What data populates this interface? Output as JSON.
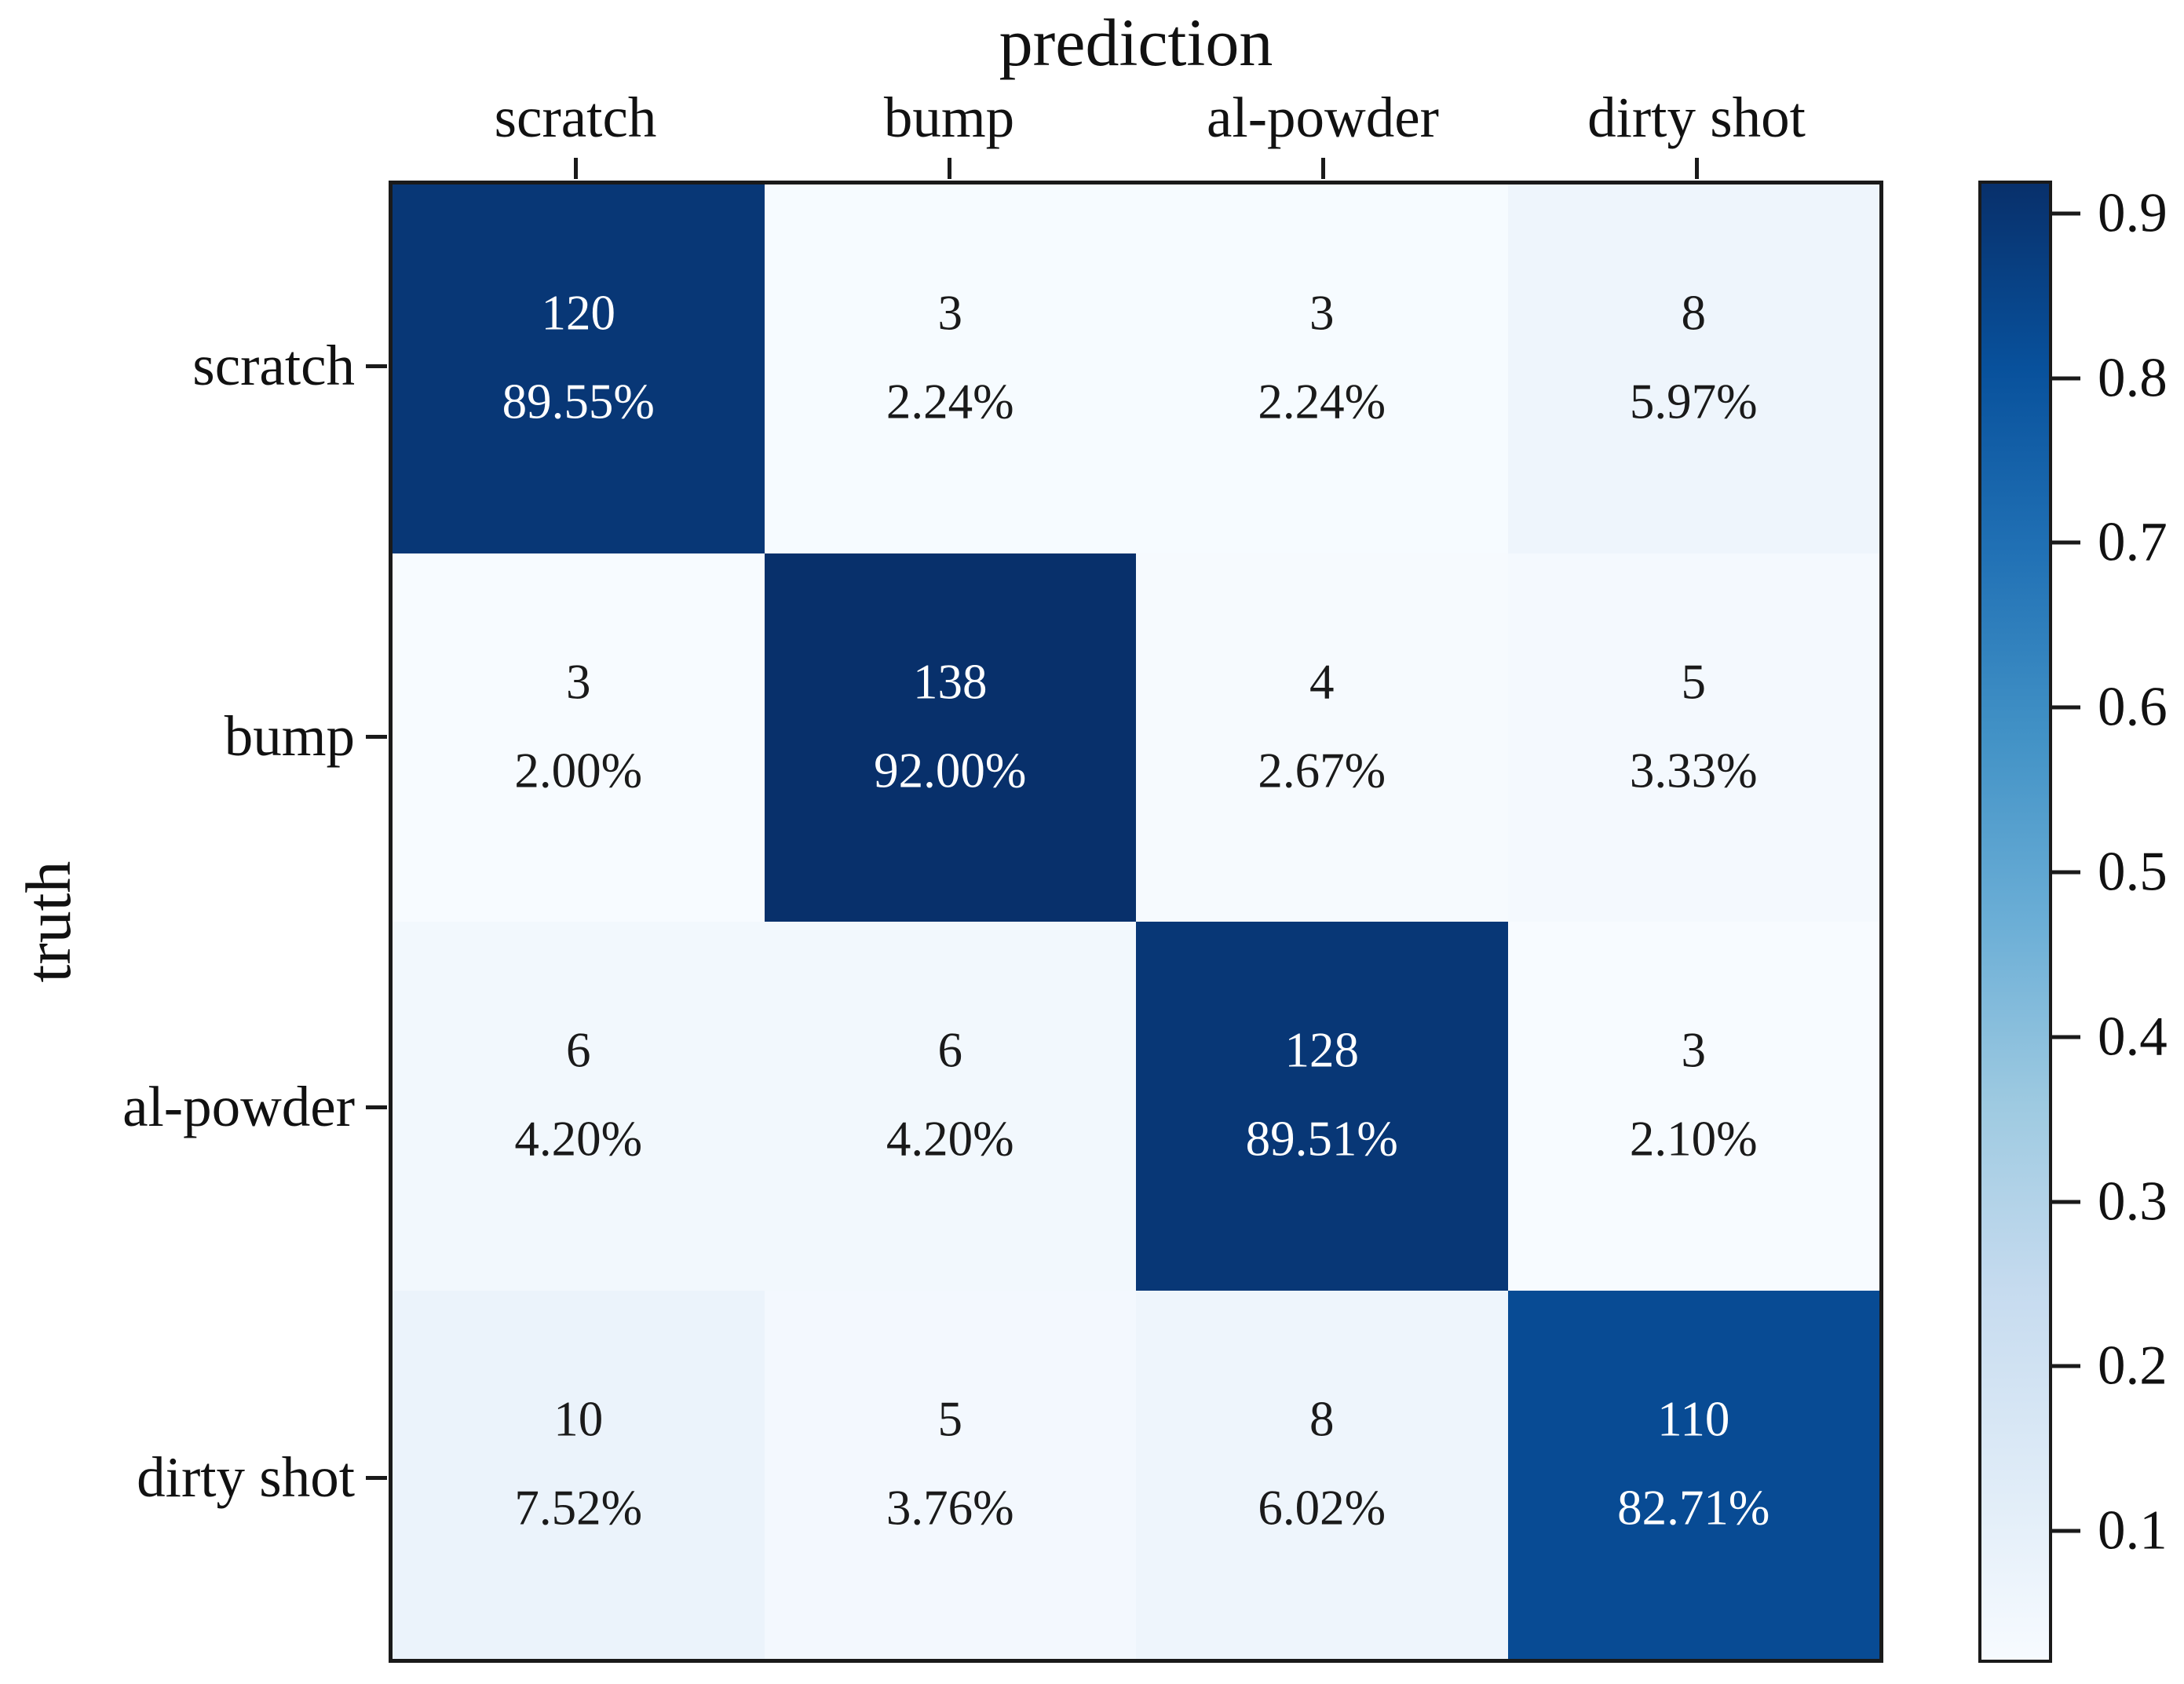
{
  "figure": {
    "title": "prediction",
    "ylabel": "truth",
    "background_color": "#ffffff",
    "axis_color": "#1a1a1a"
  },
  "chart_data": {
    "type": "heatmap",
    "title": "prediction",
    "xlabel": "prediction",
    "ylabel": "truth",
    "colormap": "Blues",
    "categories": [
      "scratch",
      "bump",
      "al-powder",
      "dirty shot"
    ],
    "rows": [
      {
        "label": "scratch",
        "cells": [
          {
            "count": "120",
            "percent": "89.55%",
            "value": 0.8955,
            "bg": "#083776",
            "fg": "#ffffff"
          },
          {
            "count": "3",
            "percent": "2.24%",
            "value": 0.0224,
            "bg": "#f6fbff",
            "fg": "#1a1a1a"
          },
          {
            "count": "3",
            "percent": "2.24%",
            "value": 0.0224,
            "bg": "#f6fbff",
            "fg": "#1a1a1a"
          },
          {
            "count": "8",
            "percent": "5.97%",
            "value": 0.0597,
            "bg": "#eef5fc",
            "fg": "#1a1a1a"
          }
        ]
      },
      {
        "label": "bump",
        "cells": [
          {
            "count": "3",
            "percent": "2.00%",
            "value": 0.02,
            "bg": "#f7fbff",
            "fg": "#1a1a1a"
          },
          {
            "count": "138",
            "percent": "92.00%",
            "value": 0.92,
            "bg": "#08306b",
            "fg": "#ffffff"
          },
          {
            "count": "4",
            "percent": "2.67%",
            "value": 0.0267,
            "bg": "#f6fafe",
            "fg": "#1a1a1a"
          },
          {
            "count": "5",
            "percent": "3.33%",
            "value": 0.0333,
            "bg": "#f4f9fe",
            "fg": "#1a1a1a"
          }
        ]
      },
      {
        "label": "al-powder",
        "cells": [
          {
            "count": "6",
            "percent": "4.20%",
            "value": 0.042,
            "bg": "#f2f8fd",
            "fg": "#1a1a1a"
          },
          {
            "count": "6",
            "percent": "4.20%",
            "value": 0.042,
            "bg": "#f2f8fd",
            "fg": "#1a1a1a"
          },
          {
            "count": "128",
            "percent": "89.51%",
            "value": 0.8951,
            "bg": "#083776",
            "fg": "#ffffff"
          },
          {
            "count": "3",
            "percent": "2.10%",
            "value": 0.021,
            "bg": "#f7fbff",
            "fg": "#1a1a1a"
          }
        ]
      },
      {
        "label": "dirty shot",
        "cells": [
          {
            "count": "10",
            "percent": "7.52%",
            "value": 0.0752,
            "bg": "#ebf3fb",
            "fg": "#1a1a1a"
          },
          {
            "count": "5",
            "percent": "3.76%",
            "value": 0.0376,
            "bg": "#f3f8fe",
            "fg": "#1a1a1a"
          },
          {
            "count": "8",
            "percent": "6.02%",
            "value": 0.0602,
            "bg": "#eef5fc",
            "fg": "#1a1a1a"
          },
          {
            "count": "110",
            "percent": "82.71%",
            "value": 0.8271,
            "bg": "#084b94",
            "fg": "#ffffff"
          }
        ]
      }
    ],
    "colorbar": {
      "tick_values": [
        0.9,
        0.8,
        0.7,
        0.6,
        0.5,
        0.4,
        0.3,
        0.2,
        0.1
      ],
      "ticks": [
        {
          "label": "0.9",
          "top_pct": 2.22
        },
        {
          "label": "0.8",
          "top_pct": 13.33
        },
        {
          "label": "0.7",
          "top_pct": 24.44
        },
        {
          "label": "0.6",
          "top_pct": 35.56
        },
        {
          "label": "0.5",
          "top_pct": 46.67
        },
        {
          "label": "0.4",
          "top_pct": 57.78
        },
        {
          "label": "0.3",
          "top_pct": 68.89
        },
        {
          "label": "0.2",
          "top_pct": 80.0
        },
        {
          "label": "0.1",
          "top_pct": 91.11
        }
      ],
      "stops": [
        {
          "color": "#08306b",
          "pos": 0
        },
        {
          "color": "#08519c",
          "pos": 12.5
        },
        {
          "color": "#2171b5",
          "pos": 25
        },
        {
          "color": "#4292c6",
          "pos": 37.5
        },
        {
          "color": "#6baed6",
          "pos": 50
        },
        {
          "color": "#9ecae1",
          "pos": 62.5
        },
        {
          "color": "#c6dbef",
          "pos": 75
        },
        {
          "color": "#deebf7",
          "pos": 87.5
        },
        {
          "color": "#f7fbff",
          "pos": 100
        }
      ]
    }
  }
}
